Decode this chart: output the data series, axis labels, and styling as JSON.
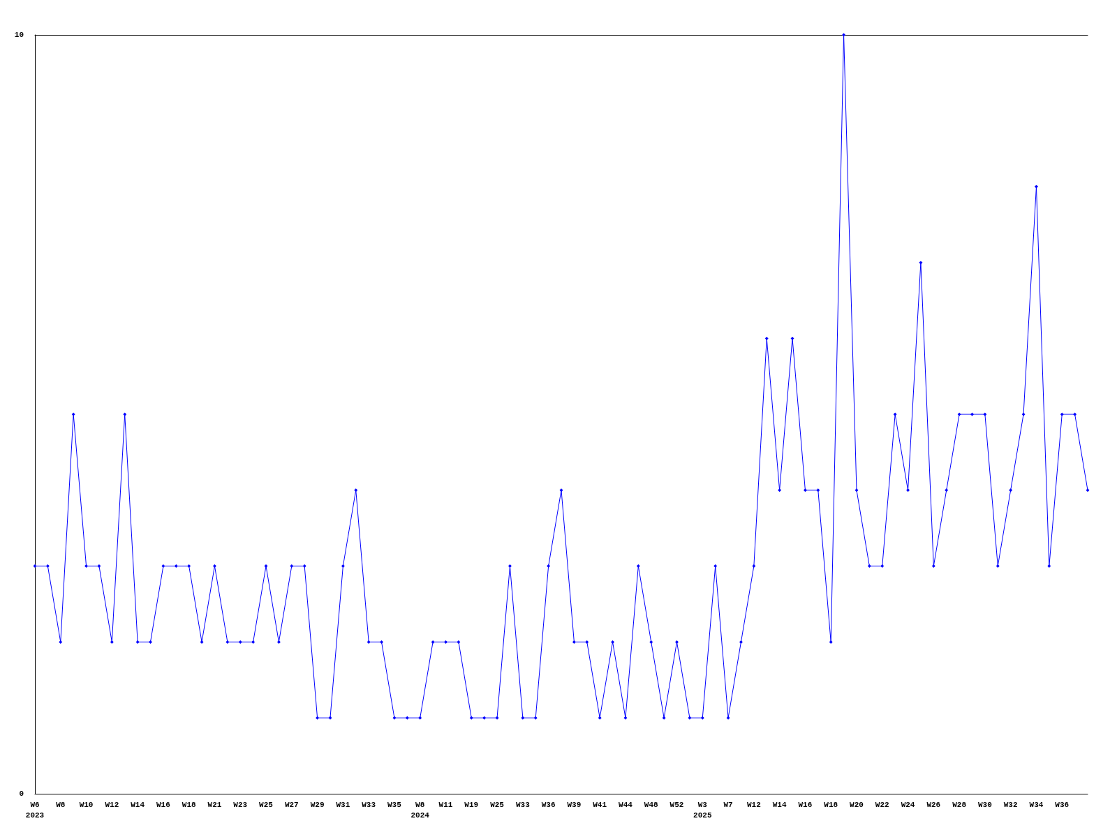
{
  "chart_data": {
    "type": "line",
    "categories": [
      "W6\n2023",
      null,
      "W8",
      null,
      "W10",
      null,
      "W12",
      null,
      "W14",
      null,
      "W16",
      null,
      "W18",
      null,
      "W21",
      null,
      "W23",
      null,
      "W25",
      null,
      "W27",
      null,
      "W29",
      null,
      "W31",
      null,
      "W33",
      null,
      "W35",
      null,
      "W8\n2024",
      null,
      "W11",
      null,
      "W19",
      null,
      "W25",
      null,
      "W33",
      null,
      "W36",
      null,
      "W39",
      null,
      "W41",
      null,
      "W44",
      null,
      "W48",
      null,
      "W52",
      null,
      "W3\n2025",
      null,
      "W7",
      null,
      "W12",
      null,
      "W14",
      null,
      "W16",
      null,
      "W18",
      null,
      "W20",
      null,
      "W22",
      null,
      "W24",
      null,
      "W26",
      null,
      "W28",
      null,
      "W30",
      null,
      "W32",
      null,
      "W34",
      null,
      "W36",
      null,
      null
    ],
    "values": [
      3,
      3,
      2,
      5,
      3,
      3,
      2,
      5,
      2,
      2,
      3,
      3,
      3,
      2,
      3,
      2,
      2,
      2,
      3,
      2,
      3,
      3,
      1,
      1,
      3,
      4,
      2,
      2,
      1,
      1,
      1,
      2,
      2,
      2,
      1,
      1,
      1,
      3,
      1,
      1,
      3,
      4,
      2,
      2,
      1,
      2,
      1,
      3,
      2,
      1,
      2,
      1,
      1,
      3,
      1,
      2,
      3,
      6,
      4,
      6,
      4,
      4,
      2,
      10,
      4,
      3,
      3,
      5,
      4,
      7,
      3,
      4,
      5,
      5,
      5,
      3,
      4,
      5,
      8,
      3,
      5,
      5,
      4
    ],
    "color": "#0000ff",
    "ylim": [
      0,
      10
    ],
    "yticks": [
      0,
      10
    ],
    "grid": false,
    "marker": "diamond",
    "line_style": "solid"
  }
}
